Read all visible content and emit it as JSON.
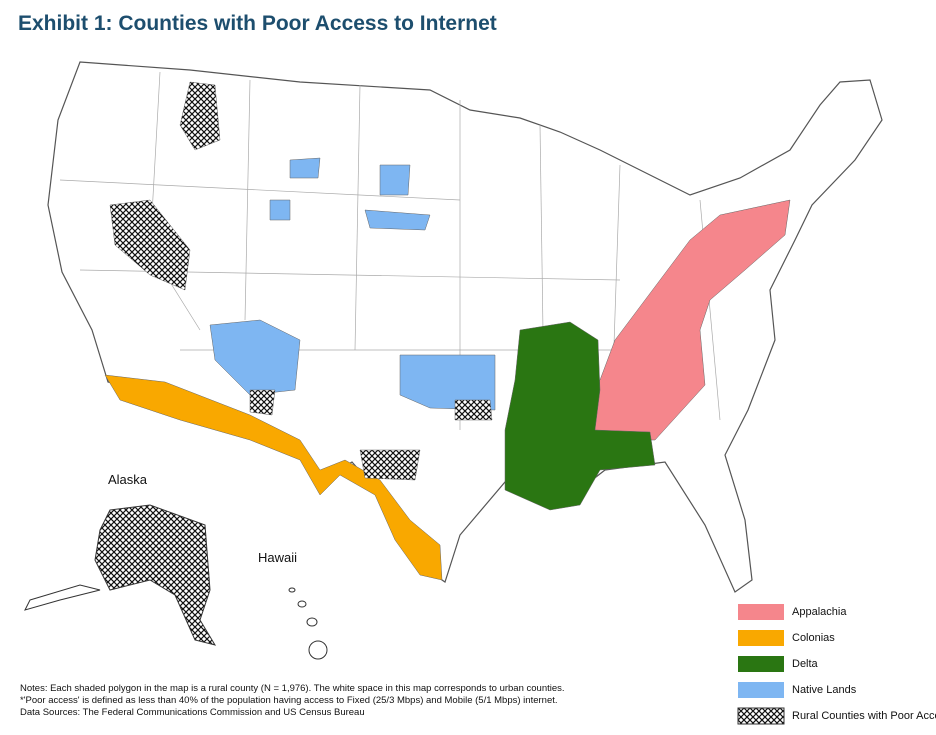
{
  "header": {
    "title": "Exhibit 1: Counties with Poor Access to Internet"
  },
  "map": {
    "labels": [
      "Alaska",
      "Hawaii"
    ]
  },
  "legend": {
    "items": [
      {
        "label": "Appalachia",
        "color": "#f5868c"
      },
      {
        "label": "Colonias",
        "color": "#f9a800"
      },
      {
        "label": "Delta",
        "color": "#2a7612"
      },
      {
        "label": "Native Lands",
        "color": "#7eb6f2"
      },
      {
        "label": "Rural Counties with Poor Access",
        "pattern": "crosshatch"
      }
    ]
  },
  "notes": [
    "Notes: Each shaded polygon in the map is a rural county (N = 1,976). The white space in this map corresponds to urban counties.",
    "*'Poor access' is defined as less than 40% of the population having access to Fixed (25/3 Mbps) and Mobile (5/1 Mbps) internet.",
    "Data Sources: The Federal Communications Commission and US Census Bureau"
  ]
}
